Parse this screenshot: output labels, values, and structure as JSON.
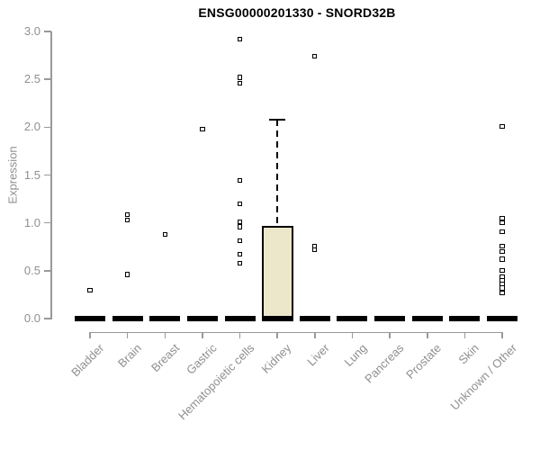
{
  "window": {
    "background": "#FFFFFF"
  },
  "chart_data": {
    "type": "boxplot",
    "title": "ENSG00000201330 - SNORD32B",
    "ylabel": "Expression",
    "xlabel": "",
    "ylim": [
      0,
      3
    ],
    "yticks": [
      0.0,
      0.5,
      1.0,
      1.5,
      2.0,
      2.5,
      3.0
    ],
    "grid": false,
    "legend": null,
    "categories": [
      "Bladder",
      "Brain",
      "Breast",
      "Gastric",
      "Hematopoietic cells",
      "Kidney",
      "Liver",
      "Lung",
      "Pancreas",
      "Prostate",
      "Skin",
      "Unknown / Other"
    ],
    "boxes": [
      {
        "category": "Bladder",
        "q1": 0,
        "median": 0,
        "q3": 0,
        "whisker_low": 0,
        "whisker_high": 0,
        "outliers": [
          0.3
        ]
      },
      {
        "category": "Brain",
        "q1": 0,
        "median": 0,
        "q3": 0,
        "whisker_low": 0,
        "whisker_high": 0,
        "outliers": [
          1.09,
          1.03,
          0.46
        ]
      },
      {
        "category": "Breast",
        "q1": 0,
        "median": 0,
        "q3": 0,
        "whisker_low": 0,
        "whisker_high": 0,
        "outliers": [
          0.88
        ]
      },
      {
        "category": "Gastric",
        "q1": 0,
        "median": 0,
        "q3": 0,
        "whisker_low": 0,
        "whisker_high": 0,
        "outliers": [
          1.98
        ]
      },
      {
        "category": "Hematopoietic cells",
        "q1": 0,
        "median": 0,
        "q3": 0,
        "whisker_low": 0,
        "whisker_high": 0,
        "outliers": [
          2.92,
          2.52,
          2.46,
          1.44,
          1.2,
          1.01,
          0.96,
          0.81,
          0.67,
          0.58
        ]
      },
      {
        "category": "Kidney",
        "q1": 0,
        "median": 0,
        "q3": 0.97,
        "whisker_low": 0,
        "whisker_high": 2.08,
        "outliers": []
      },
      {
        "category": "Liver",
        "q1": 0,
        "median": 0,
        "q3": 0,
        "whisker_low": 0,
        "whisker_high": 0,
        "outliers": [
          2.74,
          0.76,
          0.72
        ]
      },
      {
        "category": "Lung",
        "q1": 0,
        "median": 0,
        "q3": 0,
        "whisker_low": 0,
        "whisker_high": 0,
        "outliers": []
      },
      {
        "category": "Pancreas",
        "q1": 0,
        "median": 0,
        "q3": 0,
        "whisker_low": 0,
        "whisker_high": 0,
        "outliers": []
      },
      {
        "category": "Prostate",
        "q1": 0,
        "median": 0,
        "q3": 0,
        "whisker_low": 0,
        "whisker_high": 0,
        "outliers": []
      },
      {
        "category": "Skin",
        "q1": 0,
        "median": 0,
        "q3": 0,
        "whisker_low": 0,
        "whisker_high": 0,
        "outliers": []
      },
      {
        "category": "Unknown / Other",
        "q1": 0,
        "median": 0,
        "q3": 0,
        "whisker_low": 0,
        "whisker_high": 0,
        "outliers": [
          2.01,
          1.05,
          1.0,
          0.91,
          0.76,
          0.7,
          0.62,
          0.5,
          0.44,
          0.4,
          0.36,
          0.32,
          0.27
        ]
      }
    ],
    "colors": {
      "box_fill": "#ECE7CB",
      "box_border": "#000000",
      "axis": "#999999",
      "tick_text": "#8F8F8F",
      "title_text": "#000000",
      "outlier": "#000000"
    }
  }
}
